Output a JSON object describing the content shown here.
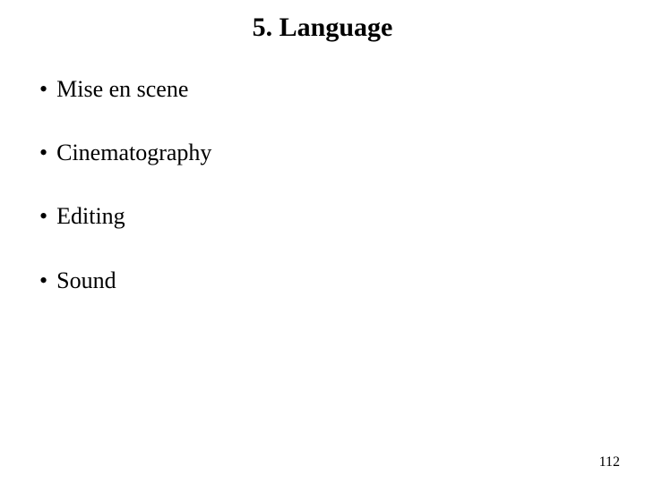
{
  "slide": {
    "title": "5. Language",
    "bullets": [
      "Mise en scene",
      "Cinematography",
      "Editing",
      "Sound"
    ],
    "page_number": "112",
    "colors": {
      "background": "#ffffff",
      "text": "#000000"
    },
    "typography": {
      "font_family": "Comic Sans MS",
      "title_fontsize_pt": 22,
      "bullet_fontsize_pt": 20,
      "page_number_fontsize_pt": 12
    },
    "bullet_char": "•"
  }
}
